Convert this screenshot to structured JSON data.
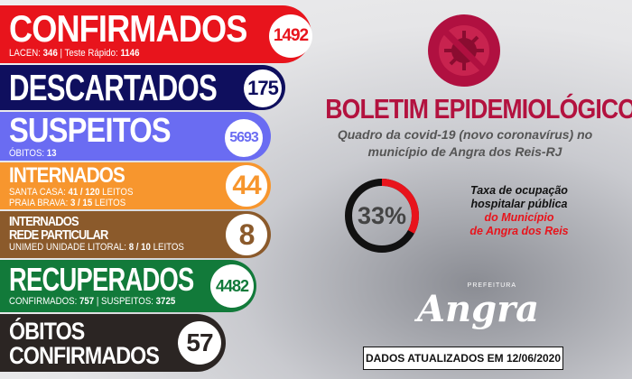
{
  "confirmados": {
    "title": "CONFIRMADOS",
    "value": "1492",
    "lacen_label": "LACEN:",
    "lacen": "346",
    "sep": "|",
    "teste_label": "Teste Rápido:",
    "teste": "1146",
    "color": "#e8141c"
  },
  "descartados": {
    "title": "DESCARTADOS",
    "value": "175",
    "color": "#0f0f5e"
  },
  "suspeitos": {
    "title": "SUSPEITOS",
    "value": "5693",
    "obitos_label": "ÓBITOS:",
    "obitos": "13",
    "color": "#6a6cf2"
  },
  "internados": {
    "title": "INTERNADOS",
    "value": "44",
    "santa_label": "SANTA CASA:",
    "santa": "41 / 120",
    "praia_label": "PRAIA BRAVA:",
    "praia": "3 / 15",
    "leitos": "LEITOS",
    "color": "#f7962e"
  },
  "particular": {
    "title1": "INTERNADOS",
    "title2": "REDE PARTICULAR",
    "value": "8",
    "unimed_label": "UNIMED UNIDADE LITORAL:",
    "unimed": "8 / 10",
    "leitos": "LEITOS",
    "color": "#8b5a2b"
  },
  "recuperados": {
    "title": "RECUPERADOS",
    "value": "4482",
    "conf_label": "CONFIRMADOS:",
    "conf": "757",
    "sep": "|",
    "susp_label": "SUSPEITOS:",
    "susp": "3725",
    "color": "#127a3a"
  },
  "obitos": {
    "title1": "ÓBITOS",
    "title2": "CONFIRMADOS",
    "value": "57",
    "color": "#2b2523"
  },
  "header": {
    "title": "BOLETIM EPIDEMIOLÓGICO",
    "subtitle1": "Quadro da covid-19 (novo coronavírus) no",
    "subtitle2": "município de Angra dos Reis-RJ",
    "icon": "no-virus-icon"
  },
  "ocupacao": {
    "percent": "33%",
    "fraction": 0.33,
    "line1": "Taxa de ocupação",
    "line2": "hospitalar pública",
    "line3": "do Município",
    "line4": "de Angra dos Reis"
  },
  "logo": {
    "small": "PREFEITURA",
    "big": "Angra"
  },
  "footer": {
    "updated": "DADOS ATUALIZADOS EM 12/06/2020"
  }
}
